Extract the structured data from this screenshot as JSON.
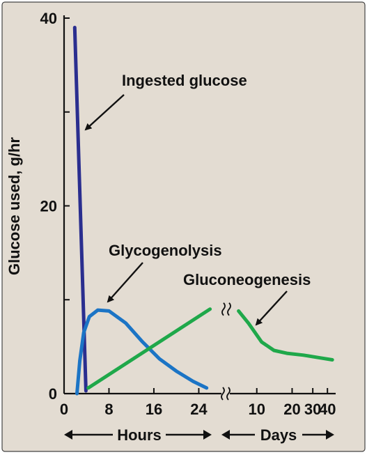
{
  "colors": {
    "background": "#e3dcd2",
    "ingested": "#2a2e8f",
    "glycogenolysis": "#1b74c5",
    "gluconeogenesis": "#1fa84a",
    "ink": "#111111"
  },
  "chart_data": {
    "type": "line",
    "ylabel": "Glucose used, g/hr",
    "ylim": [
      0,
      40
    ],
    "y_ticks": [
      "0",
      "20",
      "40"
    ],
    "x_axis": {
      "segments": [
        {
          "name": "Hours",
          "unit": "hours",
          "range": [
            0,
            27
          ],
          "ticks": [
            "0",
            "8",
            "16",
            "24"
          ]
        },
        {
          "name": "Days",
          "unit": "days",
          "range": [
            5,
            47
          ],
          "ticks": [
            "10",
            "20",
            "30",
            "40"
          ],
          "scale": "log"
        }
      ],
      "breaks": "≈"
    },
    "series": [
      {
        "name": "Ingested glucose",
        "segment": "hours",
        "color": "#2a2e8f",
        "points": [
          [
            1.9,
            39
          ],
          [
            3.9,
            0.3
          ]
        ]
      },
      {
        "name": "Glycogenolysis",
        "segment": "hours",
        "color": "#1b74c5",
        "points": [
          [
            2.3,
            0
          ],
          [
            2.8,
            3.5
          ],
          [
            3.5,
            6.5
          ],
          [
            4.5,
            8.2
          ],
          [
            6,
            8.9
          ],
          [
            8,
            8.8
          ],
          [
            11,
            7.5
          ],
          [
            14,
            5.5
          ],
          [
            17,
            3.7
          ],
          [
            20,
            2.4
          ],
          [
            23,
            1.3
          ],
          [
            25.4,
            0.6
          ]
        ]
      },
      {
        "name": "Gluconeogenesis",
        "segment": "hours",
        "color": "#1fa84a",
        "points": [
          [
            4.3,
            0.6
          ],
          [
            26,
            9
          ]
        ]
      },
      {
        "name": "Gluconeogenesis",
        "segment": "days",
        "color": "#1fa84a",
        "points": [
          [
            7,
            8.8
          ],
          [
            8.5,
            7.5
          ],
          [
            11,
            5.5
          ],
          [
            14,
            4.6
          ],
          [
            18,
            4.3
          ],
          [
            25,
            4.1
          ],
          [
            35,
            3.8
          ],
          [
            44,
            3.6
          ]
        ]
      }
    ],
    "annotations": [
      "Ingested glucose",
      "Glycogenolysis",
      "Gluconeogenesis"
    ]
  }
}
